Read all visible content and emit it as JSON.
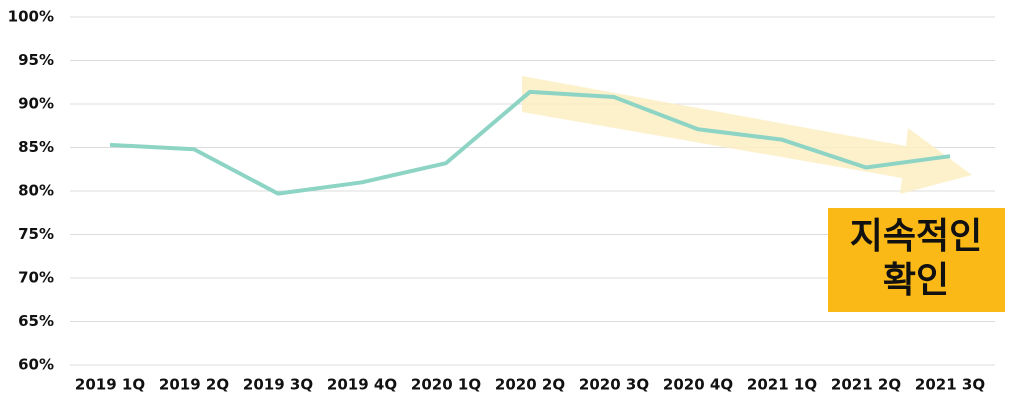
{
  "chart_data": {
    "type": "line",
    "categories": [
      "2019 1Q",
      "2019 2Q",
      "2019 3Q",
      "2019 4Q",
      "2020 1Q",
      "2020 2Q",
      "2020 3Q",
      "2020 4Q",
      "2021 1Q",
      "2021 2Q",
      "2021 3Q"
    ],
    "series": [
      {
        "color": "#8dd4c5",
        "values": [
          85.3,
          84.8,
          79.7,
          81.0,
          83.2,
          91.4,
          90.8,
          87.1,
          85.9,
          82.7,
          84.0
        ]
      }
    ],
    "ylim": [
      60,
      100
    ],
    "yticks": [
      {
        "value": 60,
        "label": "60%"
      },
      {
        "value": 65,
        "label": "65%"
      },
      {
        "value": 70,
        "label": "70%"
      },
      {
        "value": 75,
        "label": "75%"
      },
      {
        "value": 80,
        "label": "80%"
      },
      {
        "value": 85,
        "label": "85%"
      },
      {
        "value": 90,
        "label": "90%"
      },
      {
        "value": 95,
        "label": "95%"
      },
      {
        "value": 100,
        "label": "100%"
      }
    ],
    "grid": true,
    "annotation": {
      "lines": [
        "지속적인",
        "확인"
      ]
    }
  }
}
